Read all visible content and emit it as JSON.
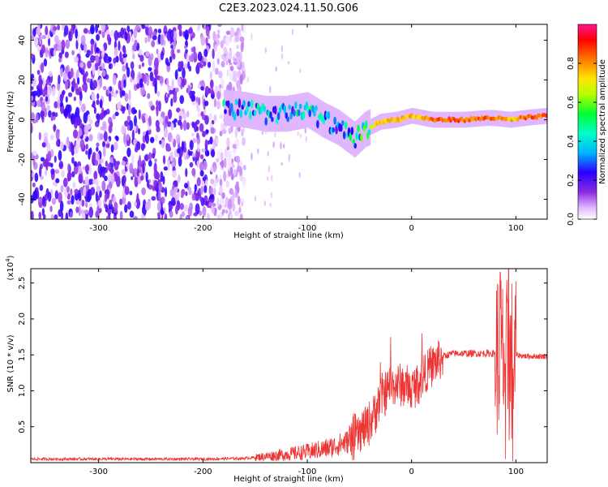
{
  "title": "C2E3.2023.024.11.50.G06",
  "chart_data": [
    {
      "type": "heatmap",
      "xlabel": "Height of straight line (km)",
      "ylabel": "Frequency (Hz)",
      "xlim": [
        -365,
        130
      ],
      "ylim": [
        -50,
        48
      ],
      "xticks": [
        -300,
        -200,
        -100,
        0,
        100
      ],
      "yticks": [
        -40,
        -20,
        0,
        20,
        40
      ],
      "colorbar": {
        "label": "Normalized spectral amplitude",
        "range": [
          0.0,
          1.0
        ],
        "ticks": [
          0.0,
          0.2,
          0.4,
          0.6,
          0.8
        ],
        "tick_labels": [
          "0.0",
          "0.2",
          "0.4",
          "0.6",
          "0.8"
        ],
        "colors": [
          "#ffffff",
          "#d9a6ff",
          "#8a2be2",
          "#4b00ff",
          "#0000ff",
          "#00c8ff",
          "#00ff64",
          "#b4ff00",
          "#ffff00",
          "#ff8c00",
          "#ff0000",
          "#ff1493"
        ]
      },
      "noise_region": {
        "x_range": [
          -365,
          -180
        ],
        "freq_range": [
          -50,
          48
        ]
      },
      "signal_ridge": [
        {
          "x": -180,
          "freq": 6,
          "amp": 0.5
        },
        {
          "x": -160,
          "freq": 5,
          "amp": 0.5
        },
        {
          "x": -140,
          "freq": 3,
          "amp": 0.55
        },
        {
          "x": -120,
          "freq": 3,
          "amp": 0.5
        },
        {
          "x": -100,
          "freq": 5,
          "amp": 0.55
        },
        {
          "x": -85,
          "freq": 0,
          "amp": 0.6
        },
        {
          "x": -70,
          "freq": -4,
          "amp": 0.5
        },
        {
          "x": -55,
          "freq": -10,
          "amp": 0.55
        },
        {
          "x": -45,
          "freq": -5,
          "amp": 0.7
        },
        {
          "x": -30,
          "freq": -1,
          "amp": 0.8
        },
        {
          "x": -15,
          "freq": 0,
          "amp": 0.85
        },
        {
          "x": 0,
          "freq": 2,
          "amp": 0.8
        },
        {
          "x": 20,
          "freq": 0,
          "amp": 0.9
        },
        {
          "x": 50,
          "freq": 0,
          "amp": 0.9
        },
        {
          "x": 75,
          "freq": 1,
          "amp": 0.9
        },
        {
          "x": 95,
          "freq": 0,
          "amp": 0.8
        },
        {
          "x": 110,
          "freq": 1,
          "amp": 0.9
        },
        {
          "x": 130,
          "freq": 2,
          "amp": 0.9
        }
      ]
    },
    {
      "type": "line",
      "xlabel": "Height of straight line (km)",
      "ylabel": "SNR (10 * v/v)",
      "y_multiplier": "(x10^4)",
      "xlim": [
        -365,
        130
      ],
      "ylim": [
        0,
        2.7
      ],
      "xticks": [
        -300,
        -200,
        -100,
        0,
        100
      ],
      "yticks": [
        0.5,
        1.0,
        1.5,
        2.0,
        2.5
      ],
      "ytick_labels": [
        "0.5",
        "1.0",
        "1.5",
        "2.0",
        "2.5"
      ],
      "color": "#ee3333",
      "x": [
        -365,
        -300,
        -250,
        -200,
        -160,
        -130,
        -100,
        -80,
        -60,
        -50,
        -40,
        -30,
        -20,
        -10,
        0,
        10,
        20,
        30,
        40,
        60,
        80,
        85,
        90,
        95,
        100,
        110,
        130
      ],
      "y": [
        0.05,
        0.05,
        0.05,
        0.05,
        0.06,
        0.1,
        0.15,
        0.2,
        0.3,
        0.4,
        0.55,
        0.9,
        1.05,
        1.1,
        1.0,
        1.2,
        1.35,
        1.48,
        1.52,
        1.52,
        1.52,
        1.5,
        1.4,
        1.4,
        1.5,
        1.48,
        1.48
      ],
      "spikes": [
        {
          "x": -40,
          "y": 0.55
        },
        {
          "x": -30,
          "y": 1.4
        },
        {
          "x": -20,
          "y": 1.75
        },
        {
          "x": 10,
          "y": 1.8
        },
        {
          "x": 85,
          "y": 2.65
        },
        {
          "x": 90,
          "y": 0.05
        },
        {
          "x": 93,
          "y": 2.7
        },
        {
          "x": 97,
          "y": 0.02
        }
      ]
    }
  ]
}
